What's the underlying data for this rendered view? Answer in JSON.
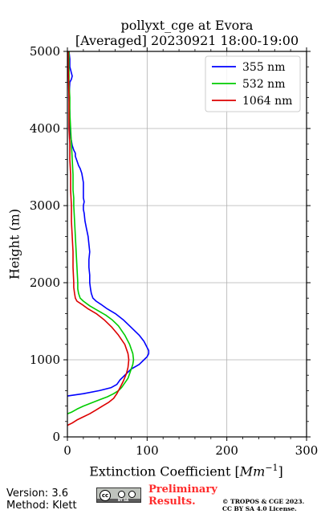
{
  "chart_data": {
    "type": "line",
    "title_line1": "pollyxt_cge at Evora",
    "title_line2": "[Averaged] 20230921 18:00-19:00",
    "xlabel": "Extinction Coefficient [",
    "xlabel_unit": "Mm",
    "xlabel_exp": "−1",
    "xlabel_close": "]",
    "ylabel": "Height (m)",
    "xlim": [
      0,
      300
    ],
    "ylim": [
      0,
      5000
    ],
    "xticks": [
      0,
      100,
      200,
      300
    ],
    "yticks": [
      0,
      1000,
      2000,
      3000,
      4000,
      5000
    ],
    "xtick_labels": [
      "0",
      "100",
      "200",
      "300"
    ],
    "ytick_labels": [
      "0",
      "1000",
      "2000",
      "3000",
      "4000",
      "5000"
    ],
    "grid": true,
    "legend_position": "top-right",
    "series": [
      {
        "name": "355 nm",
        "color": "#0000ff",
        "x": [
          0,
          20,
          40,
          55,
          62,
          66,
          72,
          80,
          90,
          96,
          100,
          102,
          102,
          100,
          96,
          90,
          80,
          70,
          60,
          50,
          42,
          36,
          32,
          30,
          29,
          28,
          28,
          27,
          27,
          28,
          27,
          26,
          24,
          22,
          21,
          20,
          20,
          21,
          20,
          20,
          20,
          19,
          18,
          16,
          14,
          12,
          10,
          10,
          8,
          6,
          5,
          4,
          3,
          3,
          2,
          3,
          5,
          6,
          5,
          4,
          3,
          3,
          2
        ],
        "y": [
          530,
          560,
          600,
          640,
          680,
          740,
          800,
          880,
          940,
          1000,
          1040,
          1080,
          1120,
          1160,
          1240,
          1320,
          1420,
          1520,
          1600,
          1660,
          1720,
          1760,
          1800,
          1860,
          1920,
          2000,
          2100,
          2200,
          2300,
          2400,
          2500,
          2600,
          2700,
          2800,
          2900,
          2950,
          3000,
          3050,
          3100,
          3200,
          3300,
          3360,
          3420,
          3480,
          3520,
          3580,
          3640,
          3680,
          3720,
          3780,
          3840,
          3900,
          4000,
          4200,
          4400,
          4600,
          4640,
          4680,
          4720,
          4760,
          4800,
          4900,
          5000
        ]
      },
      {
        "name": "532 nm",
        "color": "#00cc00",
        "x": [
          0,
          5,
          12,
          20,
          30,
          40,
          50,
          58,
          64,
          68,
          72,
          76,
          78,
          80,
          82,
          83,
          82,
          78,
          72,
          64,
          56,
          48,
          38,
          28,
          20,
          16,
          14,
          13,
          13,
          12,
          11,
          10,
          9,
          8,
          8,
          7,
          7,
          6,
          5,
          4,
          3,
          3,
          2,
          2,
          2
        ],
        "y": [
          300,
          320,
          360,
          400,
          440,
          480,
          520,
          560,
          600,
          640,
          700,
          760,
          820,
          880,
          940,
          1000,
          1080,
          1200,
          1320,
          1440,
          1520,
          1580,
          1640,
          1700,
          1760,
          1800,
          1860,
          1920,
          2000,
          2200,
          2400,
          2600,
          2800,
          3000,
          3100,
          3200,
          3400,
          3600,
          3800,
          4000,
          4200,
          4400,
          4600,
          4800,
          5000
        ]
      },
      {
        "name": "1064 nm",
        "color": "#dd0000",
        "x": [
          0,
          6,
          12,
          20,
          28,
          36,
          44,
          52,
          58,
          62,
          66,
          70,
          74,
          76,
          77,
          76,
          72,
          64,
          56,
          46,
          36,
          26,
          18,
          12,
          10,
          9,
          8,
          8,
          7,
          7,
          6,
          5,
          5,
          4,
          4,
          3,
          3,
          2,
          2,
          1,
          1
        ],
        "y": [
          150,
          180,
          220,
          260,
          300,
          350,
          400,
          450,
          500,
          560,
          640,
          720,
          820,
          900,
          1000,
          1080,
          1200,
          1320,
          1420,
          1520,
          1600,
          1660,
          1720,
          1760,
          1800,
          1860,
          1940,
          2000,
          2200,
          2400,
          2600,
          2800,
          3000,
          3200,
          3400,
          3600,
          3800,
          4000,
          4400,
          4800,
          5000
        ]
      }
    ]
  },
  "footer": {
    "version": "Version: 3.6",
    "method": "Method: Klett",
    "prelim_line1": "Preliminary",
    "prelim_line2": "Results.",
    "copyright_line1": "© TROPOS & CGE 2023.",
    "copyright_line2": "CC BY SA 4.0 License.",
    "cc_badge_text": "cc",
    "cc_badge_small": "BY SA"
  }
}
